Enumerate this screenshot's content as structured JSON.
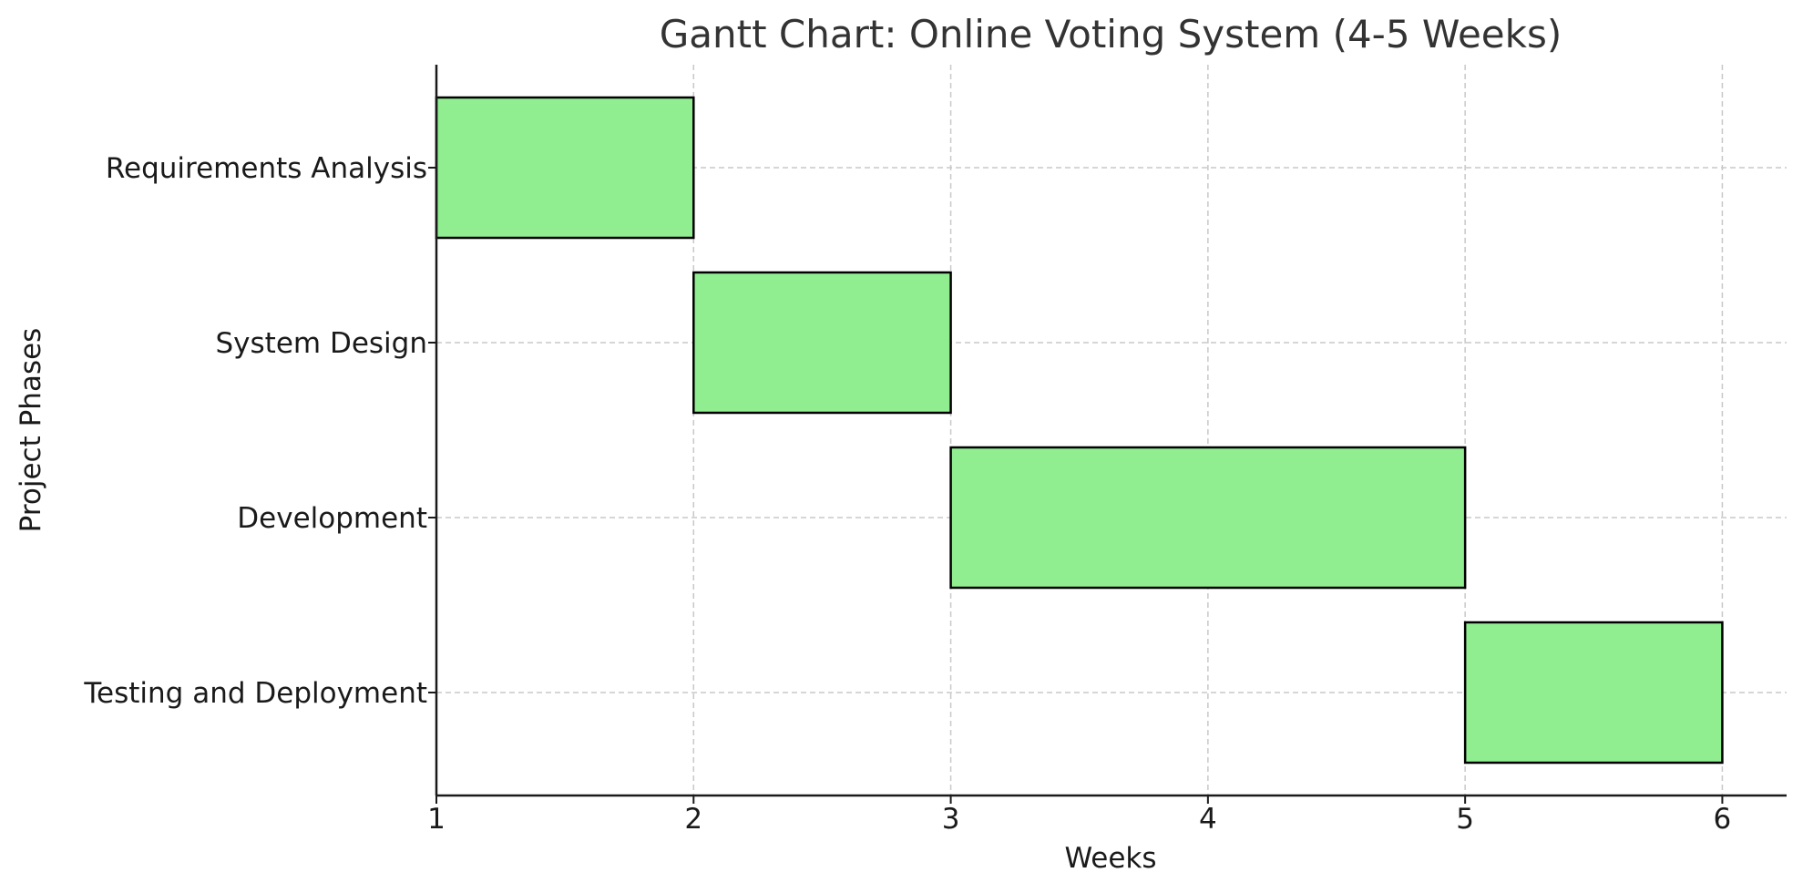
{
  "chart_data": {
    "type": "bar",
    "orientation": "horizontal",
    "gantt": true,
    "title": "Gantt Chart: Online Voting System (4-5 Weeks)",
    "xlabel": "Weeks",
    "ylabel": "Project Phases",
    "xlim": [
      1,
      6.25
    ],
    "xticks": [
      1,
      2,
      3,
      4,
      5,
      6
    ],
    "grid": true,
    "bar_color": "#90ee90",
    "bar_edge_color": "#000000",
    "tasks": [
      {
        "name": "Requirements Analysis",
        "start": 1,
        "end": 2
      },
      {
        "name": "System Design",
        "start": 2,
        "end": 3
      },
      {
        "name": "Development",
        "start": 3,
        "end": 5
      },
      {
        "name": "Testing and Deployment",
        "start": 5,
        "end": 6
      }
    ]
  }
}
